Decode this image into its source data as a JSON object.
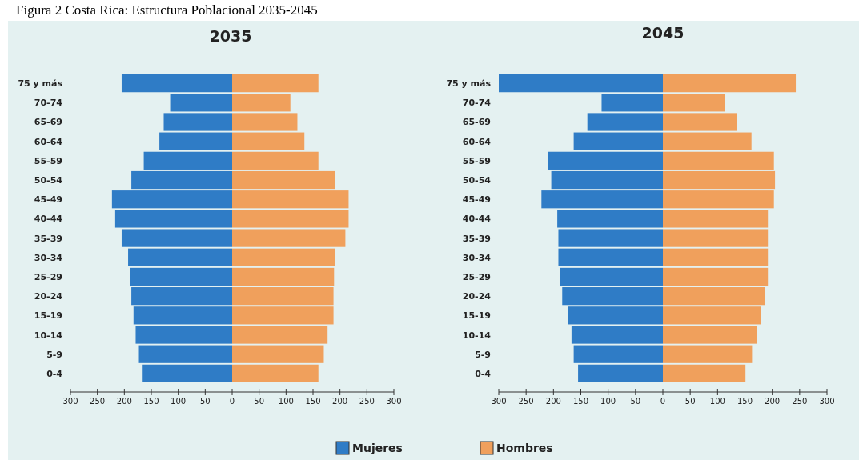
{
  "chart_data": [
    {
      "type": "bar",
      "title": "2035",
      "orientation": "horizontal",
      "stacked": true,
      "categories": [
        "75 y más",
        "70-74",
        "65-69",
        "60-64",
        "55-59",
        "50-54",
        "45-49",
        "40-44",
        "35-39",
        "30-34",
        "25-29",
        "20-24",
        "15-19",
        "10-14",
        "5-9",
        "0-4"
      ],
      "series": [
        {
          "name": "Mujeres",
          "color": "#2f7cc6",
          "values": [
            -205,
            -115,
            -127,
            -135,
            -164,
            -187,
            -223,
            -217,
            -205,
            -193,
            -189,
            -187,
            -183,
            -179,
            -173,
            -166
          ]
        },
        {
          "name": "Hombres",
          "color": "#f0a05c",
          "values": [
            160,
            108,
            121,
            134,
            160,
            191,
            216,
            216,
            210,
            191,
            189,
            188,
            188,
            177,
            170,
            160
          ]
        }
      ],
      "xlim": [
        -300,
        300
      ],
      "xticks": [
        {
          "value": -300,
          "label": "300"
        },
        {
          "value": -250,
          "label": "250"
        },
        {
          "value": -200,
          "label": "200"
        },
        {
          "value": -150,
          "label": "150"
        },
        {
          "value": -100,
          "label": "100"
        },
        {
          "value": -50,
          "label": "50"
        },
        0,
        50,
        100,
        150,
        200,
        250,
        300
      ],
      "annotations": [
        "Figura 2 Costa Rica: Estructura Poblacional 2035-2045"
      ],
      "legend": "bottom"
    },
    {
      "type": "bar",
      "title": "2045",
      "orientation": "horizontal",
      "stacked": true,
      "categories": [
        "75 y más",
        "70-74",
        "65-69",
        "60-64",
        "55-59",
        "50-54",
        "45-49",
        "40-44",
        "35-39",
        "30-34",
        "25-29",
        "20-24",
        "15-19",
        "10-14",
        "5-9",
        "0-4"
      ],
      "series": [
        {
          "color": "#2f7cc6",
          "values": [
            -300,
            -112,
            -138,
            -163,
            -210,
            -204,
            -222,
            -193,
            -191,
            -191,
            -188,
            -184,
            -173,
            -167,
            -163,
            -155
          ]
        },
        {
          "color": "#f0a05c",
          "values": [
            243,
            114,
            135,
            162,
            203,
            205,
            203,
            192,
            192,
            192,
            192,
            187,
            180,
            172,
            163,
            151
          ]
        }
      ],
      "xlim": [
        -300,
        300
      ],
      "xticks": [
        {
          "value": -300,
          "label": "300"
        },
        {
          "value": -250,
          "label": "250"
        },
        {
          "value": -200,
          "label": "200"
        },
        {
          "value": -150,
          "label": "150"
        },
        {
          "value": -100,
          "label": "100"
        },
        {
          "value": -50,
          "label": "50"
        },
        0,
        50,
        100,
        150,
        200,
        250,
        300
      ]
    }
  ]
}
